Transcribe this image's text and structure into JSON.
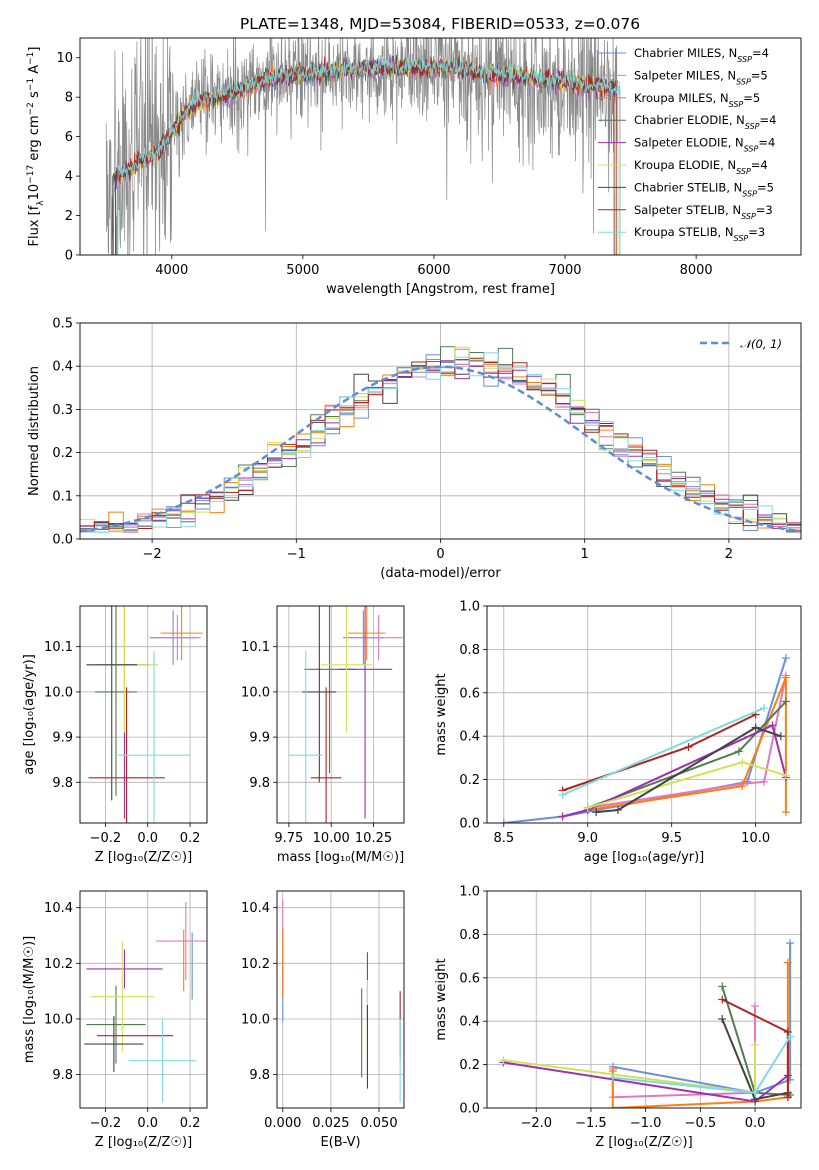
{
  "figure": {
    "title": "PLATE=1348, MJD=53084, FIBERID=0533, z=0.076"
  },
  "models": [
    {
      "name": "Chabrier MILES",
      "nssp": "4",
      "color": "#6b8fd8"
    },
    {
      "name": "Salpeter MILES",
      "nssp": "5",
      "color": "#e377c2"
    },
    {
      "name": "Kroupa MILES",
      "nssp": "5",
      "color": "#ff7f0e"
    },
    {
      "name": "Chabrier ELODIE",
      "nssp": "4",
      "color": "#4e7d4e"
    },
    {
      "name": "Salpeter ELODIE",
      "nssp": "4",
      "color": "#9b30b0"
    },
    {
      "name": "Kroupa ELODIE",
      "nssp": "4",
      "color": "#d4e157"
    },
    {
      "name": "Chabrier STELIB",
      "nssp": "5",
      "color": "#444444"
    },
    {
      "name": "Salpeter STELIB",
      "nssp": "3",
      "color": "#b22222"
    },
    {
      "name": "Kroupa STELIB",
      "nssp": "3",
      "color": "#7fdbdf"
    }
  ],
  "chart_data": [
    {
      "id": "spectrum",
      "type": "line",
      "title": "PLATE=1348, MJD=53084, FIBERID=0533, z=0.076",
      "xlabel": "wavelength [Angstrom, rest frame]",
      "ylabel_parts": [
        "Flux [f",
        "λ",
        "10",
        "−17",
        " erg cm",
        "−2",
        " s",
        "−1",
        " A",
        "−1",
        "]"
      ],
      "xlim": [
        3300,
        8800
      ],
      "ylim": [
        0,
        11
      ],
      "xticks": [
        4000,
        5000,
        6000,
        7000,
        8000
      ],
      "yticks": [
        0,
        2,
        4,
        6,
        8,
        10
      ],
      "grid": false,
      "legend": "upper right",
      "data_anchor_x": [
        3500,
        3600,
        3700,
        3800,
        3900,
        4000,
        4100,
        4200,
        4300,
        4400,
        4500,
        4600,
        4700,
        4800,
        4900,
        5000,
        5200,
        5400,
        5600,
        5800,
        6000,
        6200,
        6400,
        6600,
        6800,
        7000,
        7200,
        7400
      ],
      "data_anchor_y": [
        3.8,
        4.0,
        4.5,
        5.0,
        5.3,
        6.3,
        7.3,
        7.8,
        7.9,
        8.1,
        8.4,
        8.7,
        8.9,
        9.0,
        9.1,
        9.2,
        9.3,
        9.4,
        9.5,
        9.6,
        9.6,
        9.5,
        9.3,
        9.1,
        8.9,
        8.8,
        8.6,
        8.4
      ],
      "data_noise_scale": 2.2,
      "model_anchor_x": [
        3500,
        3600,
        3700,
        3800,
        3900,
        4000,
        4100,
        4200,
        4300,
        4400,
        4500,
        4600,
        4700,
        4800,
        4900,
        5000,
        5200,
        5400,
        5600,
        5800,
        6000,
        6200,
        6400,
        6600,
        6800,
        7000,
        7200,
        7400
      ],
      "model_anchor_y": [
        3.9,
        4.0,
        4.4,
        4.9,
        5.2,
        6.2,
        7.2,
        7.7,
        7.9,
        8.1,
        8.3,
        8.6,
        8.8,
        9.0,
        9.1,
        9.2,
        9.3,
        9.4,
        9.5,
        9.5,
        9.5,
        9.4,
        9.2,
        9.1,
        8.9,
        8.8,
        8.6,
        8.4
      ],
      "model_x_start": 3550,
      "model_x_end": 7420
    },
    {
      "id": "residuals",
      "type": "line",
      "xlabel": "(data-model)/error",
      "ylabel": "Normed distribution",
      "xlim": [
        -2.5,
        2.5
      ],
      "ylim": [
        0,
        0.5
      ],
      "xticks": [
        -2,
        -1,
        0,
        1,
        2
      ],
      "yticks": [
        0.0,
        0.1,
        0.2,
        0.3,
        0.4,
        0.5
      ],
      "grid": true,
      "legend": "upper right",
      "reference_label": "𝒩(0, 1)",
      "bin_width": 0.1
    },
    {
      "id": "age_vs_Z",
      "type": "scatter",
      "xlabel": "Z [log₁₀(Z/Z☉)]",
      "ylabel": "age  [log₁₀(age/yr)]",
      "xlim": [
        -0.32,
        0.28
      ],
      "ylim": [
        9.71,
        10.19
      ],
      "xticks": [
        -0.2,
        0.0,
        0.2
      ],
      "xticklabels": [
        "−0.2",
        "0.0",
        "0.2"
      ],
      "yticks": [
        9.8,
        9.9,
        10.0,
        10.1
      ],
      "yticklabels": [
        "9.8",
        "9.9",
        "10.0",
        "10.1"
      ],
      "grid": true,
      "points": [
        {
          "m": 0,
          "x": 0.12,
          "xerr": 0.11,
          "y": 10.12,
          "yerr": 0.06
        },
        {
          "m": 1,
          "x": 0.14,
          "xerr": 0.11,
          "y": 10.12,
          "yerr": 0.05
        },
        {
          "m": 2,
          "x": 0.16,
          "xerr": 0.1,
          "y": 10.13,
          "yerr": 0.06
        },
        {
          "m": 3,
          "x": -0.15,
          "xerr": 0.1,
          "y": 10.0,
          "yerr": 0.23
        },
        {
          "m": 4,
          "x": -0.11,
          "xerr": 0.12,
          "y": 10.06,
          "yerr": 0.34
        },
        {
          "m": 5,
          "x": -0.11,
          "xerr": 0.16,
          "y": 10.06,
          "yerr": 0.15
        },
        {
          "m": 6,
          "x": -0.17,
          "xerr": 0.12,
          "y": 10.06,
          "yerr": 0.3
        },
        {
          "m": 7,
          "x": -0.1,
          "xerr": 0.18,
          "y": 9.81,
          "yerr": 0.2
        },
        {
          "m": 8,
          "x": 0.03,
          "xerr": 0.17,
          "y": 9.86,
          "yerr": 0.23
        }
      ]
    },
    {
      "id": "age_vs_mass",
      "type": "scatter",
      "xlabel": "mass [log₁₀(M/M☉)]",
      "ylabel": "",
      "xlim": [
        9.68,
        10.43
      ],
      "ylim": [
        9.71,
        10.19
      ],
      "xticks": [
        9.75,
        10.0,
        10.25
      ],
      "xticklabels": [
        "9.75",
        "10.00",
        "10.25"
      ],
      "yticks": [
        9.8,
        9.9,
        10.0,
        10.1
      ],
      "yticklabels": [
        "9.8",
        "9.9",
        "10.0",
        "10.1"
      ],
      "grid": true,
      "points": [
        {
          "m": 0,
          "x": 10.19,
          "xerr": 0.12,
          "y": 10.12,
          "yerr": 0.06
        },
        {
          "m": 1,
          "x": 10.28,
          "xerr": 0.14,
          "y": 10.12,
          "yerr": 0.05
        },
        {
          "m": 2,
          "x": 10.21,
          "xerr": 0.11,
          "y": 10.13,
          "yerr": 0.06
        },
        {
          "m": 3,
          "x": 9.99,
          "xerr": 0.15,
          "y": 10.05,
          "yerr": 0.23
        },
        {
          "m": 4,
          "x": 10.2,
          "xerr": 0.16,
          "y": 10.05,
          "yerr": 0.33
        },
        {
          "m": 5,
          "x": 10.09,
          "xerr": 0.15,
          "y": 10.06,
          "yerr": 0.15
        },
        {
          "m": 6,
          "x": 9.93,
          "xerr": 0.1,
          "y": 10.0,
          "yerr": 0.2
        },
        {
          "m": 7,
          "x": 9.97,
          "xerr": 0.09,
          "y": 9.81,
          "yerr": 0.2
        },
        {
          "m": 8,
          "x": 9.85,
          "xerr": 0.1,
          "y": 9.86,
          "yerr": 0.23
        }
      ]
    },
    {
      "id": "weight_vs_age",
      "type": "line",
      "xlabel": "age  [log₁₀(age/yr)]",
      "ylabel": "mass weight",
      "xlim": [
        8.4,
        10.27
      ],
      "ylim": [
        0,
        1.0
      ],
      "xticks": [
        8.5,
        9.0,
        9.5,
        10.0
      ],
      "xticklabels": [
        "8.5",
        "9.0",
        "9.5",
        "10.0"
      ],
      "yticks": [
        0.0,
        0.2,
        0.4,
        0.6,
        0.8,
        1.0
      ],
      "yticklabels": [
        "0.0",
        "0.2",
        "0.4",
        "0.6",
        "0.8",
        "1.0"
      ],
      "grid": true,
      "series": [
        {
          "m": 0,
          "x": [
            8.5,
            8.85,
            9.95,
            10.18
          ],
          "y": [
            0.0,
            0.03,
            0.19,
            0.76
          ]
        },
        {
          "m": 1,
          "x": [
            9.0,
            9.92,
            10.05,
            10.18
          ],
          "y": [
            0.07,
            0.18,
            0.19,
            0.68
          ]
        },
        {
          "m": 2,
          "x": [
            9.0,
            9.92,
            10.18,
            10.18
          ],
          "y": [
            0.06,
            0.17,
            0.67,
            0.05
          ]
        },
        {
          "m": 3,
          "x": [
            9.0,
            9.9,
            10.18
          ],
          "y": [
            0.07,
            0.33,
            0.56
          ]
        },
        {
          "m": 4,
          "x": [
            8.85,
            9.0,
            10.1,
            10.18
          ],
          "y": [
            0.03,
            0.06,
            0.45,
            0.21
          ]
        },
        {
          "m": 5,
          "x": [
            9.0,
            9.92,
            10.18
          ],
          "y": [
            0.07,
            0.28,
            0.22
          ]
        },
        {
          "m": 6,
          "x": [
            9.05,
            9.18,
            10.0,
            10.15
          ],
          "y": [
            0.05,
            0.06,
            0.44,
            0.4
          ]
        },
        {
          "m": 7,
          "x": [
            8.85,
            9.6,
            10.0
          ],
          "y": [
            0.15,
            0.35,
            0.5
          ]
        },
        {
          "m": 8,
          "x": [
            8.85,
            10.05
          ],
          "y": [
            0.13,
            0.53
          ]
        }
      ]
    },
    {
      "id": "mass_vs_Z",
      "type": "scatter",
      "xlabel": "Z [log₁₀(Z/Z☉)]",
      "ylabel": "mass [log₁₀(M/M☉)]",
      "xlim": [
        -0.32,
        0.28
      ],
      "ylim": [
        9.68,
        10.46
      ],
      "xticks": [
        -0.2,
        0.0,
        0.2
      ],
      "xticklabels": [
        "−0.2",
        "0.0",
        "0.2"
      ],
      "yticks": [
        9.8,
        10.0,
        10.2,
        10.4
      ],
      "yticklabels": [
        "9.8",
        "10.0",
        "10.2",
        "10.4"
      ],
      "grid": true,
      "points": [
        {
          "m": 0,
          "x": 0.21,
          "xerr": 0.0,
          "y": 10.19,
          "yerr": 0.12
        },
        {
          "m": 1,
          "x": 0.18,
          "xerr": 0.14,
          "y": 10.28,
          "yerr": 0.14
        },
        {
          "m": 2,
          "x": 0.17,
          "xerr": 0.0,
          "y": 10.21,
          "yerr": 0.11
        },
        {
          "m": 3,
          "x": -0.15,
          "xerr": 0.14,
          "y": 9.98,
          "yerr": 0.14
        },
        {
          "m": 4,
          "x": -0.11,
          "xerr": 0.18,
          "y": 10.18,
          "yerr": 0.07
        },
        {
          "m": 5,
          "x": -0.12,
          "xerr": 0.15,
          "y": 10.08,
          "yerr": 0.2
        },
        {
          "m": 6,
          "x": -0.16,
          "xerr": 0.14,
          "y": 9.91,
          "yerr": 0.1
        },
        {
          "m": 7,
          "x": -0.06,
          "xerr": 0.18,
          "y": 9.94,
          "yerr": 0.0
        },
        {
          "m": 8,
          "x": 0.07,
          "xerr": 0.16,
          "y": 9.85,
          "yerr": 0.15
        }
      ]
    },
    {
      "id": "mass_vs_ebv",
      "type": "scatter",
      "xlabel": "E(B-V)",
      "ylabel": "",
      "xlim": [
        -0.003,
        0.063
      ],
      "ylim": [
        9.68,
        10.46
      ],
      "xticks": [
        0.0,
        0.025,
        0.05
      ],
      "xticklabels": [
        "0.000",
        "0.025",
        "0.050"
      ],
      "yticks": [
        9.8,
        10.0,
        10.2,
        10.4
      ],
      "yticklabels": [
        "9.8",
        "10.0",
        "10.2",
        "10.4"
      ],
      "grid": true,
      "points": [
        {
          "m": 0,
          "x": 0.0,
          "xerr": 0,
          "y": 10.1,
          "yerr": 0.11
        },
        {
          "m": 1,
          "x": 0.0,
          "xerr": 0,
          "y": 10.27,
          "yerr": 0.16
        },
        {
          "m": 2,
          "x": 0.0,
          "xerr": 0,
          "y": 10.2,
          "yerr": 0.12
        },
        {
          "m": 3,
          "x": 0.041,
          "xerr": 0,
          "y": 9.95,
          "yerr": 0.16
        },
        {
          "m": 4,
          "x": 0.044,
          "xerr": 0,
          "y": 10.12,
          "yerr": 0.12
        },
        {
          "m": 5,
          "x": 0.044,
          "xerr": 0,
          "y": 10.0,
          "yerr": 0.14
        },
        {
          "m": 6,
          "x": 0.044,
          "xerr": 0,
          "y": 9.9,
          "yerr": 0.15
        },
        {
          "m": 7,
          "x": 0.061,
          "xerr": 0,
          "y": 9.98,
          "yerr": 0.12
        },
        {
          "m": 8,
          "x": 0.061,
          "xerr": 0,
          "y": 9.85,
          "yerr": 0.15
        }
      ]
    },
    {
      "id": "weight_vs_Z",
      "type": "line",
      "xlabel": "Z [log₁₀(Z/Z☉)]",
      "ylabel": "mass weight",
      "xlim": [
        -2.45,
        0.42
      ],
      "ylim": [
        0,
        1.0
      ],
      "xticks": [
        -2.0,
        -1.5,
        -1.0,
        -0.5,
        0.0
      ],
      "xticklabels": [
        "−2.0",
        "−1.5",
        "−1.0",
        "−0.5",
        "0.0"
      ],
      "yticks": [
        0.0,
        0.2,
        0.4,
        0.6,
        0.8,
        1.0
      ],
      "yticklabels": [
        "0.0",
        "0.2",
        "0.4",
        "0.6",
        "0.8",
        "1.0"
      ],
      "grid": true,
      "series": [
        {
          "m": 0,
          "x": [
            -1.3,
            0.0,
            0.32,
            0.32
          ],
          "y": [
            0.19,
            0.07,
            0.13,
            0.76
          ]
        },
        {
          "m": 1,
          "x": [
            -1.3,
            -1.3,
            0.0,
            0.0
          ],
          "y": [
            0.18,
            0.05,
            0.07,
            0.47
          ]
        },
        {
          "m": 2,
          "x": [
            -1.3,
            -1.3,
            0.0,
            0.3,
            0.3
          ],
          "y": [
            0.17,
            0.0,
            0.03,
            0.05,
            0.67
          ]
        },
        {
          "m": 3,
          "x": [
            -0.3,
            0.0,
            0.32
          ],
          "y": [
            0.56,
            0.07,
            0.06
          ]
        },
        {
          "m": 4,
          "x": [
            -2.3,
            0.0,
            0.3
          ],
          "y": [
            0.21,
            0.03,
            0.15
          ]
        },
        {
          "m": 5,
          "x": [
            -2.3,
            0.0,
            0.0
          ],
          "y": [
            0.22,
            0.07,
            0.29
          ]
        },
        {
          "m": 6,
          "x": [
            -0.3,
            0.0,
            0.3
          ],
          "y": [
            0.41,
            0.04,
            0.07
          ]
        },
        {
          "m": 7,
          "x": [
            -0.3,
            0.3,
            0.3
          ],
          "y": [
            0.5,
            0.35,
            0.05
          ]
        },
        {
          "m": 8,
          "x": [
            -1.3,
            0.0,
            0.32
          ],
          "y": [
            0.14,
            0.07,
            0.33
          ]
        }
      ]
    }
  ]
}
